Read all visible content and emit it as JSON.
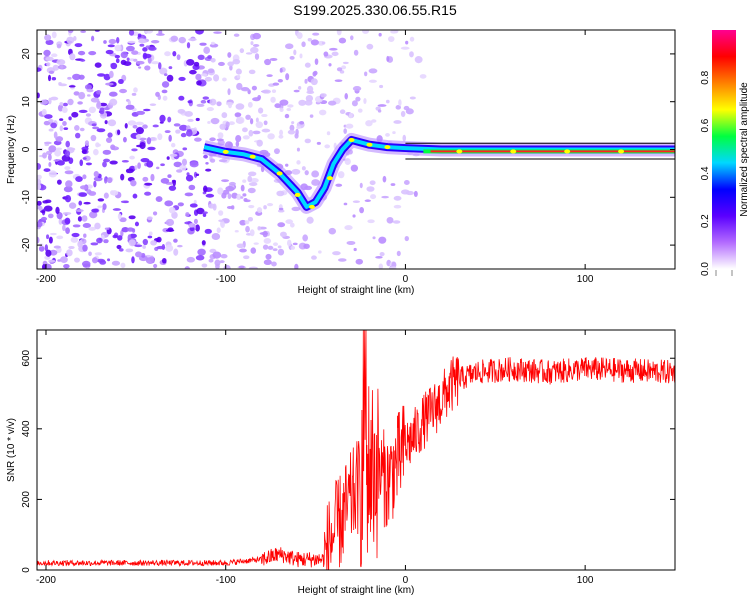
{
  "title": "S199.2025.330.06.55.R15",
  "chart_data": [
    {
      "type": "heatmap",
      "title": "S199.2025.330.06.55.R15",
      "xlabel": "Height of straight line (km)",
      "ylabel": "Frequency (Hz)",
      "xlim": [
        -205,
        150
      ],
      "ylim": [
        -25,
        25
      ],
      "x_ticks": [
        -200,
        -100,
        0,
        100
      ],
      "y_ticks": [
        -20,
        -10,
        0,
        10,
        20
      ],
      "colorbar": {
        "label": "Normalized spectral amplitude",
        "range": [
          0,
          1
        ],
        "ticks": [
          "0.0",
          "0.2",
          "0.4",
          "0.6",
          "0.8"
        ],
        "colors": [
          "#ffffff",
          "#b36bff",
          "#5a00ff",
          "#0000ff",
          "#00d8ff",
          "#00ff40",
          "#ffff00",
          "#ff8000",
          "#ff0000",
          "#ff0090"
        ]
      },
      "ridge": {
        "x": [
          -112,
          -100,
          -90,
          -80,
          -70,
          -60,
          -55,
          -50,
          -45,
          -40,
          -35,
          -30,
          -25,
          -20,
          -10,
          0,
          20,
          40,
          60,
          80,
          100,
          120,
          150
        ],
        "y": [
          0.5,
          -0.5,
          -1,
          -2,
          -5,
          -9,
          -12,
          -11,
          -8,
          -3,
          0,
          2,
          1.5,
          1,
          0.5,
          0.3,
          0,
          0,
          0,
          0,
          0,
          0,
          0
        ]
      }
    },
    {
      "type": "line",
      "xlabel": "Height of straight line (km)",
      "ylabel": "SNR (10 * v/v)",
      "xlim": [
        -205,
        150
      ],
      "ylim": [
        0,
        680
      ],
      "x_ticks": [
        -200,
        -100,
        0,
        100
      ],
      "y_ticks": [
        0,
        200,
        400,
        600
      ],
      "color": "#ff0000",
      "trend": {
        "x": [
          -205,
          -150,
          -100,
          -80,
          -70,
          -60,
          -45,
          -42,
          -35,
          -30,
          -25,
          -20,
          -15,
          -10,
          -5,
          0,
          5,
          10,
          20,
          25,
          30,
          40,
          60,
          80,
          100,
          150
        ],
        "y": [
          20,
          20,
          20,
          30,
          45,
          30,
          30,
          80,
          150,
          200,
          250,
          300,
          280,
          250,
          300,
          350,
          380,
          420,
          480,
          520,
          540,
          560,
          570,
          560,
          570,
          560
        ]
      }
    }
  ]
}
